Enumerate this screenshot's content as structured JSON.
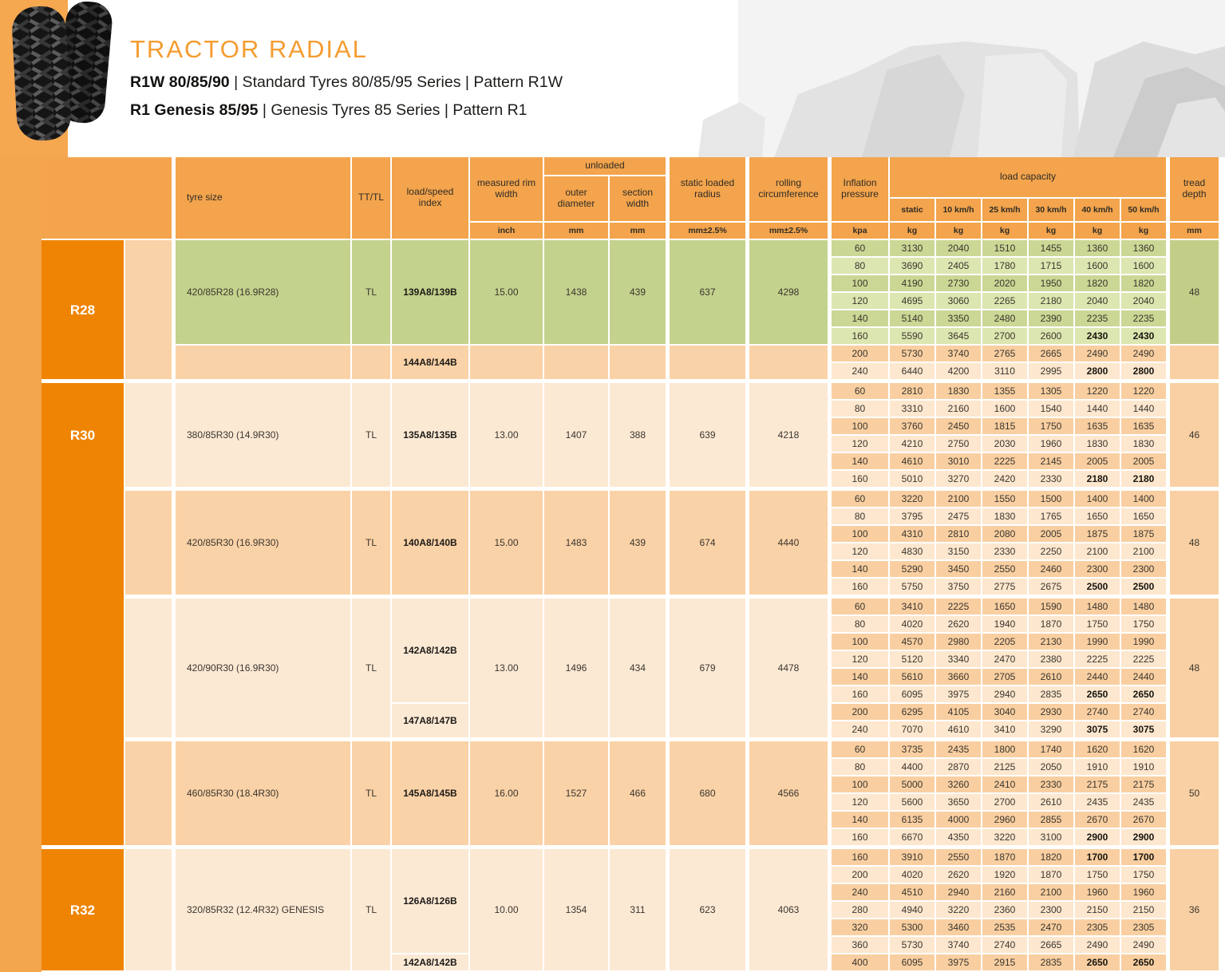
{
  "page": {
    "title": "TRACTOR RADIAL",
    "subtitle1_bold": "R1W 80/85/90",
    "subtitle1_rest": " | Standard Tyres 80/85/95 Series | Pattern R1W",
    "subtitle2_bold": "R1 Genesis 85/95",
    "subtitle2_rest": " | Genesis Tyres 85 Series | Pattern R1"
  },
  "colors": {
    "accent_orange": "#F3A44C",
    "dark_orange": "#EF8403",
    "title_orange": "#F59C30",
    "green_spec": "#C3D28C",
    "green_stripe_dark": "#CBD794",
    "green_stripe_light": "#DCE6B0",
    "peach_spec": "#FAD2A7",
    "cream_spec": "#FCE9D4",
    "peach_stripe_dark": "#F9CFA1",
    "peach_stripe_light": "#FDE7CE"
  },
  "table": {
    "headers": {
      "tyre_size": "tyre size",
      "tt_tl": "TT/TL",
      "load_speed_index": "load/speed index",
      "measured_rim_width": "measured rim width",
      "unloaded": "unloaded",
      "outer_diameter": "outer diameter",
      "section_width": "section width",
      "static_loaded_radius": "static loaded radius",
      "rolling_circumference": "rolling circumference",
      "inflation_pressure": "Inflation pressure",
      "load_capacity": "load capacity",
      "speeds": [
        "static",
        "10 km/h",
        "25 km/h",
        "30 km/h",
        "40 km/h",
        "50 km/h"
      ],
      "tread_depth": "tread depth",
      "units": {
        "rim": "inch",
        "od": "mm",
        "sw": "mm",
        "slr": "mm±2.5%",
        "rc": "mm±2.5%",
        "pressure": "kpa",
        "kg": "kg",
        "tread": "mm"
      }
    },
    "groups": [
      {
        "label": "R28",
        "sections": [
          {
            "tyre_size": "420/85R28 (16.9R28)",
            "tt_tl": "TL",
            "rim": "15.00",
            "od": "1438",
            "sw": "439",
            "slr": "637",
            "rc": "4298",
            "strip": "peach",
            "green_rows": 6,
            "spec_zones": [
              {
                "rows": 6,
                "theme": "green",
                "values": true
              },
              {
                "rows": 2,
                "theme": "peach",
                "values": false
              }
            ],
            "indices": [
              {
                "label": "139A8/139B",
                "rows": 6,
                "theme": "green"
              },
              {
                "label": "144A8/144B",
                "rows": 2,
                "theme": "peach"
              }
            ],
            "tread_zones": [
              {
                "rows": 6,
                "theme": "greenSolid",
                "value": "48"
              },
              {
                "rows": 2,
                "theme": "treadPeach",
                "value": ""
              }
            ],
            "rows": [
              {
                "p": "60",
                "v": [
                  "3130",
                  "2040",
                  "1510",
                  "1455",
                  "1360",
                  "1360"
                ]
              },
              {
                "p": "80",
                "v": [
                  "3690",
                  "2405",
                  "1780",
                  "1715",
                  "1600",
                  "1600"
                ]
              },
              {
                "p": "100",
                "v": [
                  "4190",
                  "2730",
                  "2020",
                  "1950",
                  "1820",
                  "1820"
                ]
              },
              {
                "p": "120",
                "v": [
                  "4695",
                  "3060",
                  "2265",
                  "2180",
                  "2040",
                  "2040"
                ]
              },
              {
                "p": "140",
                "v": [
                  "5140",
                  "3350",
                  "2480",
                  "2390",
                  "2235",
                  "2235"
                ]
              },
              {
                "p": "160",
                "v": [
                  "5590",
                  "3645",
                  "2700",
                  "2600",
                  "2430",
                  "2430"
                ],
                "b": [
                  4,
                  5
                ]
              },
              {
                "p": "200",
                "v": [
                  "5730",
                  "3740",
                  "2765",
                  "2665",
                  "2490",
                  "2490"
                ]
              },
              {
                "p": "240",
                "v": [
                  "6440",
                  "4200",
                  "3110",
                  "2995",
                  "2800",
                  "2800"
                ],
                "b": [
                  4,
                  5
                ]
              }
            ]
          }
        ]
      },
      {
        "label": "R30",
        "sections": [
          {
            "tyre_size": "380/85R30 (14.9R30)",
            "tt_tl": "TL",
            "rim": "13.00",
            "od": "1407",
            "sw": "388",
            "slr": "639",
            "rc": "4218",
            "strip": "cream",
            "spec_zones": [
              {
                "rows": 6,
                "theme": "cream",
                "values": true
              }
            ],
            "indices": [
              {
                "label": "135A8/135B",
                "rows": 6,
                "theme": "cream"
              }
            ],
            "tread_zones": [
              {
                "rows": 6,
                "theme": "treadPeach",
                "value": "46"
              }
            ],
            "rows": [
              {
                "p": "60",
                "v": [
                  "2810",
                  "1830",
                  "1355",
                  "1305",
                  "1220",
                  "1220"
                ]
              },
              {
                "p": "80",
                "v": [
                  "3310",
                  "2160",
                  "1600",
                  "1540",
                  "1440",
                  "1440"
                ]
              },
              {
                "p": "100",
                "v": [
                  "3760",
                  "2450",
                  "1815",
                  "1750",
                  "1635",
                  "1635"
                ]
              },
              {
                "p": "120",
                "v": [
                  "4210",
                  "2750",
                  "2030",
                  "1960",
                  "1830",
                  "1830"
                ]
              },
              {
                "p": "140",
                "v": [
                  "4610",
                  "3010",
                  "2225",
                  "2145",
                  "2005",
                  "2005"
                ]
              },
              {
                "p": "160",
                "v": [
                  "5010",
                  "3270",
                  "2420",
                  "2330",
                  "2180",
                  "2180"
                ],
                "b": [
                  4,
                  5
                ]
              }
            ]
          },
          {
            "tyre_size": "420/85R30 (16.9R30)",
            "tt_tl": "TL",
            "rim": "15.00",
            "od": "1483",
            "sw": "439",
            "slr": "674",
            "rc": "4440",
            "strip": "peach",
            "spec_zones": [
              {
                "rows": 6,
                "theme": "peach",
                "values": true
              }
            ],
            "indices": [
              {
                "label": "140A8/140B",
                "rows": 6,
                "theme": "peach"
              }
            ],
            "tread_zones": [
              {
                "rows": 6,
                "theme": "treadPeach",
                "value": "48"
              }
            ],
            "rows": [
              {
                "p": "60",
                "v": [
                  "3220",
                  "2100",
                  "1550",
                  "1500",
                  "1400",
                  "1400"
                ]
              },
              {
                "p": "80",
                "v": [
                  "3795",
                  "2475",
                  "1830",
                  "1765",
                  "1650",
                  "1650"
                ]
              },
              {
                "p": "100",
                "v": [
                  "4310",
                  "2810",
                  "2080",
                  "2005",
                  "1875",
                  "1875"
                ]
              },
              {
                "p": "120",
                "v": [
                  "4830",
                  "3150",
                  "2330",
                  "2250",
                  "2100",
                  "2100"
                ]
              },
              {
                "p": "140",
                "v": [
                  "5290",
                  "3450",
                  "2550",
                  "2460",
                  "2300",
                  "2300"
                ]
              },
              {
                "p": "160",
                "v": [
                  "5750",
                  "3750",
                  "2775",
                  "2675",
                  "2500",
                  "2500"
                ],
                "b": [
                  4,
                  5
                ]
              }
            ]
          },
          {
            "tyre_size": "420/90R30 (16.9R30)",
            "tt_tl": "TL",
            "rim": "13.00",
            "od": "1496",
            "sw": "434",
            "slr": "679",
            "rc": "4478",
            "strip": "cream",
            "spec_zones": [
              {
                "rows": 8,
                "theme": "cream",
                "values": true
              }
            ],
            "indices": [
              {
                "label": "142A8/142B",
                "rows": 6,
                "theme": "cream"
              },
              {
                "label": "147A8/147B",
                "rows": 2,
                "theme": "cream"
              }
            ],
            "tread_zones": [
              {
                "rows": 8,
                "theme": "treadPeach",
                "value": "48"
              }
            ],
            "rows": [
              {
                "p": "60",
                "v": [
                  "3410",
                  "2225",
                  "1650",
                  "1590",
                  "1480",
                  "1480"
                ]
              },
              {
                "p": "80",
                "v": [
                  "4020",
                  "2620",
                  "1940",
                  "1870",
                  "1750",
                  "1750"
                ]
              },
              {
                "p": "100",
                "v": [
                  "4570",
                  "2980",
                  "2205",
                  "2130",
                  "1990",
                  "1990"
                ]
              },
              {
                "p": "120",
                "v": [
                  "5120",
                  "3340",
                  "2470",
                  "2380",
                  "2225",
                  "2225"
                ]
              },
              {
                "p": "140",
                "v": [
                  "5610",
                  "3660",
                  "2705",
                  "2610",
                  "2440",
                  "2440"
                ]
              },
              {
                "p": "160",
                "v": [
                  "6095",
                  "3975",
                  "2940",
                  "2835",
                  "2650",
                  "2650"
                ],
                "b": [
                  4,
                  5
                ]
              },
              {
                "p": "200",
                "v": [
                  "6295",
                  "4105",
                  "3040",
                  "2930",
                  "2740",
                  "2740"
                ]
              },
              {
                "p": "240",
                "v": [
                  "7070",
                  "4610",
                  "3410",
                  "3290",
                  "3075",
                  "3075"
                ],
                "b": [
                  4,
                  5
                ]
              }
            ]
          },
          {
            "tyre_size": "460/85R30 (18.4R30)",
            "tt_tl": "TL",
            "rim": "16.00",
            "od": "1527",
            "sw": "466",
            "slr": "680",
            "rc": "4566",
            "strip": "peach",
            "spec_zones": [
              {
                "rows": 6,
                "theme": "peach",
                "values": true
              }
            ],
            "indices": [
              {
                "label": "145A8/145B",
                "rows": 6,
                "theme": "peach"
              }
            ],
            "tread_zones": [
              {
                "rows": 6,
                "theme": "treadPeach",
                "value": "50"
              }
            ],
            "rows": [
              {
                "p": "60",
                "v": [
                  "3735",
                  "2435",
                  "1800",
                  "1740",
                  "1620",
                  "1620"
                ]
              },
              {
                "p": "80",
                "v": [
                  "4400",
                  "2870",
                  "2125",
                  "2050",
                  "1910",
                  "1910"
                ]
              },
              {
                "p": "100",
                "v": [
                  "5000",
                  "3260",
                  "2410",
                  "2330",
                  "2175",
                  "2175"
                ]
              },
              {
                "p": "120",
                "v": [
                  "5600",
                  "3650",
                  "2700",
                  "2610",
                  "2435",
                  "2435"
                ]
              },
              {
                "p": "140",
                "v": [
                  "6135",
                  "4000",
                  "2960",
                  "2855",
                  "2670",
                  "2670"
                ]
              },
              {
                "p": "160",
                "v": [
                  "6670",
                  "4350",
                  "3220",
                  "3100",
                  "2900",
                  "2900"
                ],
                "b": [
                  4,
                  5
                ]
              }
            ]
          }
        ]
      },
      {
        "label": "R32",
        "sections": [
          {
            "tyre_size": "320/85R32 (12.4R32) GENESIS",
            "tt_tl": "TL",
            "rim": "10.00",
            "od": "1354",
            "sw": "311",
            "slr": "623",
            "rc": "4063",
            "strip": "cream",
            "spec_zones": [
              {
                "rows": 7,
                "theme": "cream",
                "values": true
              }
            ],
            "indices": [
              {
                "label": "126A8/126B",
                "rows": 6,
                "theme": "cream"
              },
              {
                "label": "142A8/142B",
                "rows": 1,
                "theme": "cream"
              }
            ],
            "tread_zones": [
              {
                "rows": 7,
                "theme": "treadPeach",
                "value": "36"
              }
            ],
            "rows": [
              {
                "p": "160",
                "v": [
                  "3910",
                  "2550",
                  "1870",
                  "1820",
                  "1700",
                  "1700"
                ],
                "b": [
                  4,
                  5
                ]
              },
              {
                "p": "200",
                "v": [
                  "4020",
                  "2620",
                  "1920",
                  "1870",
                  "1750",
                  "1750"
                ]
              },
              {
                "p": "240",
                "v": [
                  "4510",
                  "2940",
                  "2160",
                  "2100",
                  "1960",
                  "1960"
                ]
              },
              {
                "p": "280",
                "v": [
                  "4940",
                  "3220",
                  "2360",
                  "2300",
                  "2150",
                  "2150"
                ]
              },
              {
                "p": "320",
                "v": [
                  "5300",
                  "3460",
                  "2535",
                  "2470",
                  "2305",
                  "2305"
                ]
              },
              {
                "p": "360",
                "v": [
                  "5730",
                  "3740",
                  "2740",
                  "2665",
                  "2490",
                  "2490"
                ]
              },
              {
                "p": "400",
                "v": [
                  "6095",
                  "3975",
                  "2915",
                  "2835",
                  "2650",
                  "2650"
                ],
                "b": [
                  4,
                  5
                ]
              }
            ]
          }
        ]
      }
    ]
  }
}
